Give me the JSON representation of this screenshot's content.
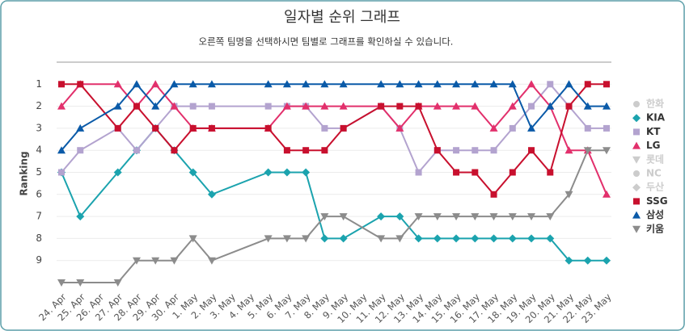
{
  "chart_data": {
    "type": "line",
    "title": "일자별 순위 그래프",
    "subtitle": "오른쪽 팀명을 선택하시면 팀별로 그래프를 확인하실 수 있습니다.",
    "y_label": "Ranking",
    "categories": [
      "24. Apr",
      "25. Apr",
      "26. Apr",
      "27. Apr",
      "28. Apr",
      "29. Apr",
      "30. Apr",
      "1. May",
      "2. May",
      "3. May",
      "4. May",
      "5. May",
      "6. May",
      "7. May",
      "8. May",
      "9. May",
      "10. May",
      "11. May",
      "12. May",
      "13. May",
      "14. May",
      "15. May",
      "16. May",
      "17. May",
      "18. May",
      "19. May",
      "20. May",
      "21. May",
      "22. May",
      "23. May"
    ],
    "ylim": [
      10,
      0
    ],
    "yticks": [
      1,
      2,
      3,
      4,
      5,
      6,
      7,
      8,
      9
    ],
    "grid": true,
    "connect_nulls": true,
    "legend": "right",
    "series": [
      {
        "name": "한화",
        "color": "#cccccc",
        "marker": "circle",
        "visible": false
      },
      {
        "name": "KIA",
        "color": "#1ba3ae",
        "marker": "diamond",
        "visible": true,
        "values": [
          5,
          7,
          null,
          5,
          4,
          3,
          4,
          5,
          6,
          null,
          null,
          5,
          5,
          5,
          8,
          8,
          null,
          7,
          7,
          8,
          8,
          8,
          8,
          8,
          8,
          8,
          8,
          9,
          9,
          9
        ]
      },
      {
        "name": "KT",
        "color": "#b3a3cf",
        "marker": "square",
        "visible": true,
        "values": [
          5,
          4,
          null,
          3,
          4,
          3,
          2,
          2,
          2,
          null,
          null,
          2,
          2,
          2,
          3,
          3,
          null,
          2,
          3,
          5,
          4,
          4,
          4,
          4,
          3,
          2,
          1,
          2,
          3,
          3
        ]
      },
      {
        "name": "LG",
        "color": "#e2306c",
        "marker": "triangle",
        "visible": true,
        "values": [
          2,
          1,
          null,
          1,
          2,
          1,
          2,
          3,
          3,
          null,
          null,
          3,
          2,
          2,
          2,
          2,
          null,
          2,
          3,
          2,
          2,
          2,
          2,
          3,
          2,
          1,
          2,
          4,
          4,
          6
        ]
      },
      {
        "name": "롯데",
        "color": "#cccccc",
        "marker": "triangle-down",
        "visible": false
      },
      {
        "name": "NC",
        "color": "#cccccc",
        "marker": "circle",
        "visible": false
      },
      {
        "name": "두산",
        "color": "#cccccc",
        "marker": "diamond",
        "visible": false
      },
      {
        "name": "SSG",
        "color": "#c8102e",
        "marker": "square",
        "visible": true,
        "values": [
          1,
          1,
          null,
          3,
          2,
          3,
          4,
          3,
          3,
          null,
          null,
          3,
          4,
          4,
          4,
          3,
          null,
          2,
          2,
          2,
          4,
          5,
          5,
          6,
          5,
          4,
          5,
          2,
          1,
          1
        ]
      },
      {
        "name": "삼성",
        "color": "#0a5aa8",
        "marker": "triangle",
        "visible": true,
        "values": [
          4,
          3,
          null,
          2,
          1,
          2,
          1,
          1,
          1,
          null,
          null,
          1,
          1,
          1,
          1,
          1,
          null,
          1,
          1,
          1,
          1,
          1,
          1,
          1,
          1,
          3,
          2,
          1,
          2,
          2
        ]
      },
      {
        "name": "키움",
        "color": "#8c8c8c",
        "marker": "triangle-down",
        "visible": true,
        "values": [
          10,
          10,
          null,
          10,
          9,
          9,
          9,
          8,
          9,
          null,
          null,
          8,
          8,
          8,
          7,
          7,
          null,
          8,
          8,
          7,
          7,
          7,
          7,
          7,
          7,
          7,
          7,
          6,
          4,
          4
        ]
      }
    ]
  }
}
